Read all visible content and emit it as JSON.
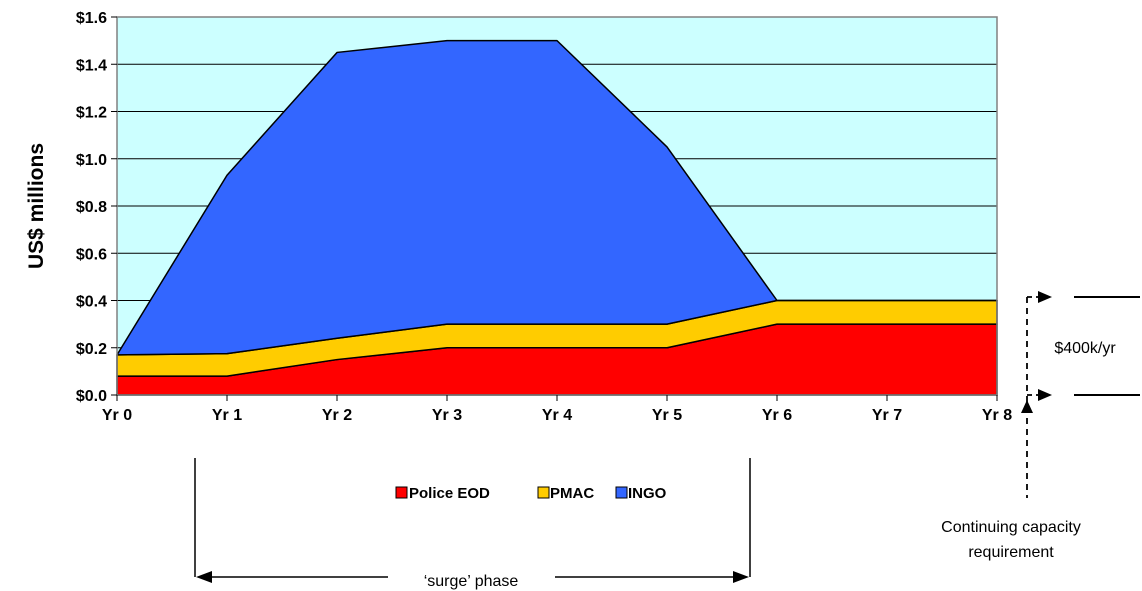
{
  "chart_data": {
    "type": "area",
    "stacked": true,
    "categories": [
      "Yr 0",
      "Yr 1",
      "Yr 2",
      "Yr 3",
      "Yr 4",
      "Yr 5",
      "Yr 6",
      "Yr 7",
      "Yr 8"
    ],
    "series": [
      {
        "name": "Police EOD",
        "color": "#ff0000",
        "values": [
          0.08,
          0.08,
          0.15,
          0.2,
          0.2,
          0.2,
          0.3,
          0.3,
          0.3
        ]
      },
      {
        "name": "PMAC",
        "color": "#ffcc00",
        "values": [
          0.09,
          0.095,
          0.09,
          0.1,
          0.1,
          0.1,
          0.1,
          0.1,
          0.1
        ]
      },
      {
        "name": "INGO",
        "color": "#3366ff",
        "values": [
          0.0,
          0.755,
          1.21,
          1.2,
          1.2,
          0.75,
          0.0,
          0.0,
          0.0
        ]
      }
    ],
    "yticks": [
      "$0.0",
      "$0.2",
      "$0.4",
      "$0.6",
      "$0.8",
      "$1.0",
      "$1.2",
      "$1.4",
      "$1.6"
    ],
    "ylim": [
      0,
      1.6
    ],
    "ylabel": "US$ millions",
    "xlabel": "",
    "grid": true,
    "plot_background": "#ccffff",
    "legend_position": "bottom-center"
  },
  "annotations": {
    "bracket_label": "$400k/yr",
    "continuing_line1": "Continuing capacity",
    "continuing_line2": "requirement",
    "surge_label": "‘surge’ phase"
  }
}
